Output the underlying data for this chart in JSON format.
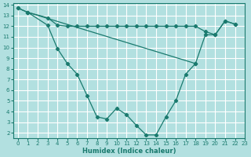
{
  "xlabel": "Humidex (Indice chaleur)",
  "bg_color": "#b2e0e0",
  "grid_color": "#ffffff",
  "line_color": "#1a7a6e",
  "xlim": [
    -0.5,
    23
  ],
  "ylim": [
    1.5,
    14.2
  ],
  "xticks": [
    0,
    1,
    2,
    3,
    4,
    5,
    6,
    7,
    8,
    9,
    10,
    11,
    12,
    13,
    14,
    15,
    16,
    17,
    18,
    19,
    20,
    21,
    22,
    23
  ],
  "yticks": [
    2,
    3,
    4,
    5,
    6,
    7,
    8,
    9,
    10,
    11,
    12,
    13,
    14
  ],
  "series1_x": [
    0,
    1,
    3,
    4,
    5,
    6,
    7,
    8,
    9,
    10,
    11,
    12,
    13,
    14,
    15,
    16,
    17,
    18,
    19,
    20,
    21,
    22
  ],
  "series1_y": [
    13.7,
    13.3,
    12.8,
    12.1,
    12.0,
    12.0,
    12.0,
    12.0,
    12.0,
    12.0,
    12.0,
    12.0,
    12.0,
    12.0,
    12.0,
    12.0,
    12.0,
    12.0,
    11.5,
    11.2,
    12.5,
    12.2
  ],
  "series2_x": [
    0,
    1,
    3,
    4,
    5,
    6,
    7,
    8,
    9,
    10,
    11,
    12,
    13,
    14,
    15,
    16,
    17,
    18
  ],
  "series2_y": [
    13.7,
    13.3,
    12.1,
    9.9,
    8.5,
    7.5,
    5.5,
    3.5,
    3.3,
    4.3,
    3.7,
    2.7,
    1.8,
    1.8,
    3.5,
    5.0,
    7.5,
    8.5
  ],
  "series3_x": [
    1,
    18,
    19,
    20,
    21,
    22
  ],
  "series3_y": [
    13.3,
    8.5,
    11.2,
    11.2,
    12.5,
    12.2
  ]
}
